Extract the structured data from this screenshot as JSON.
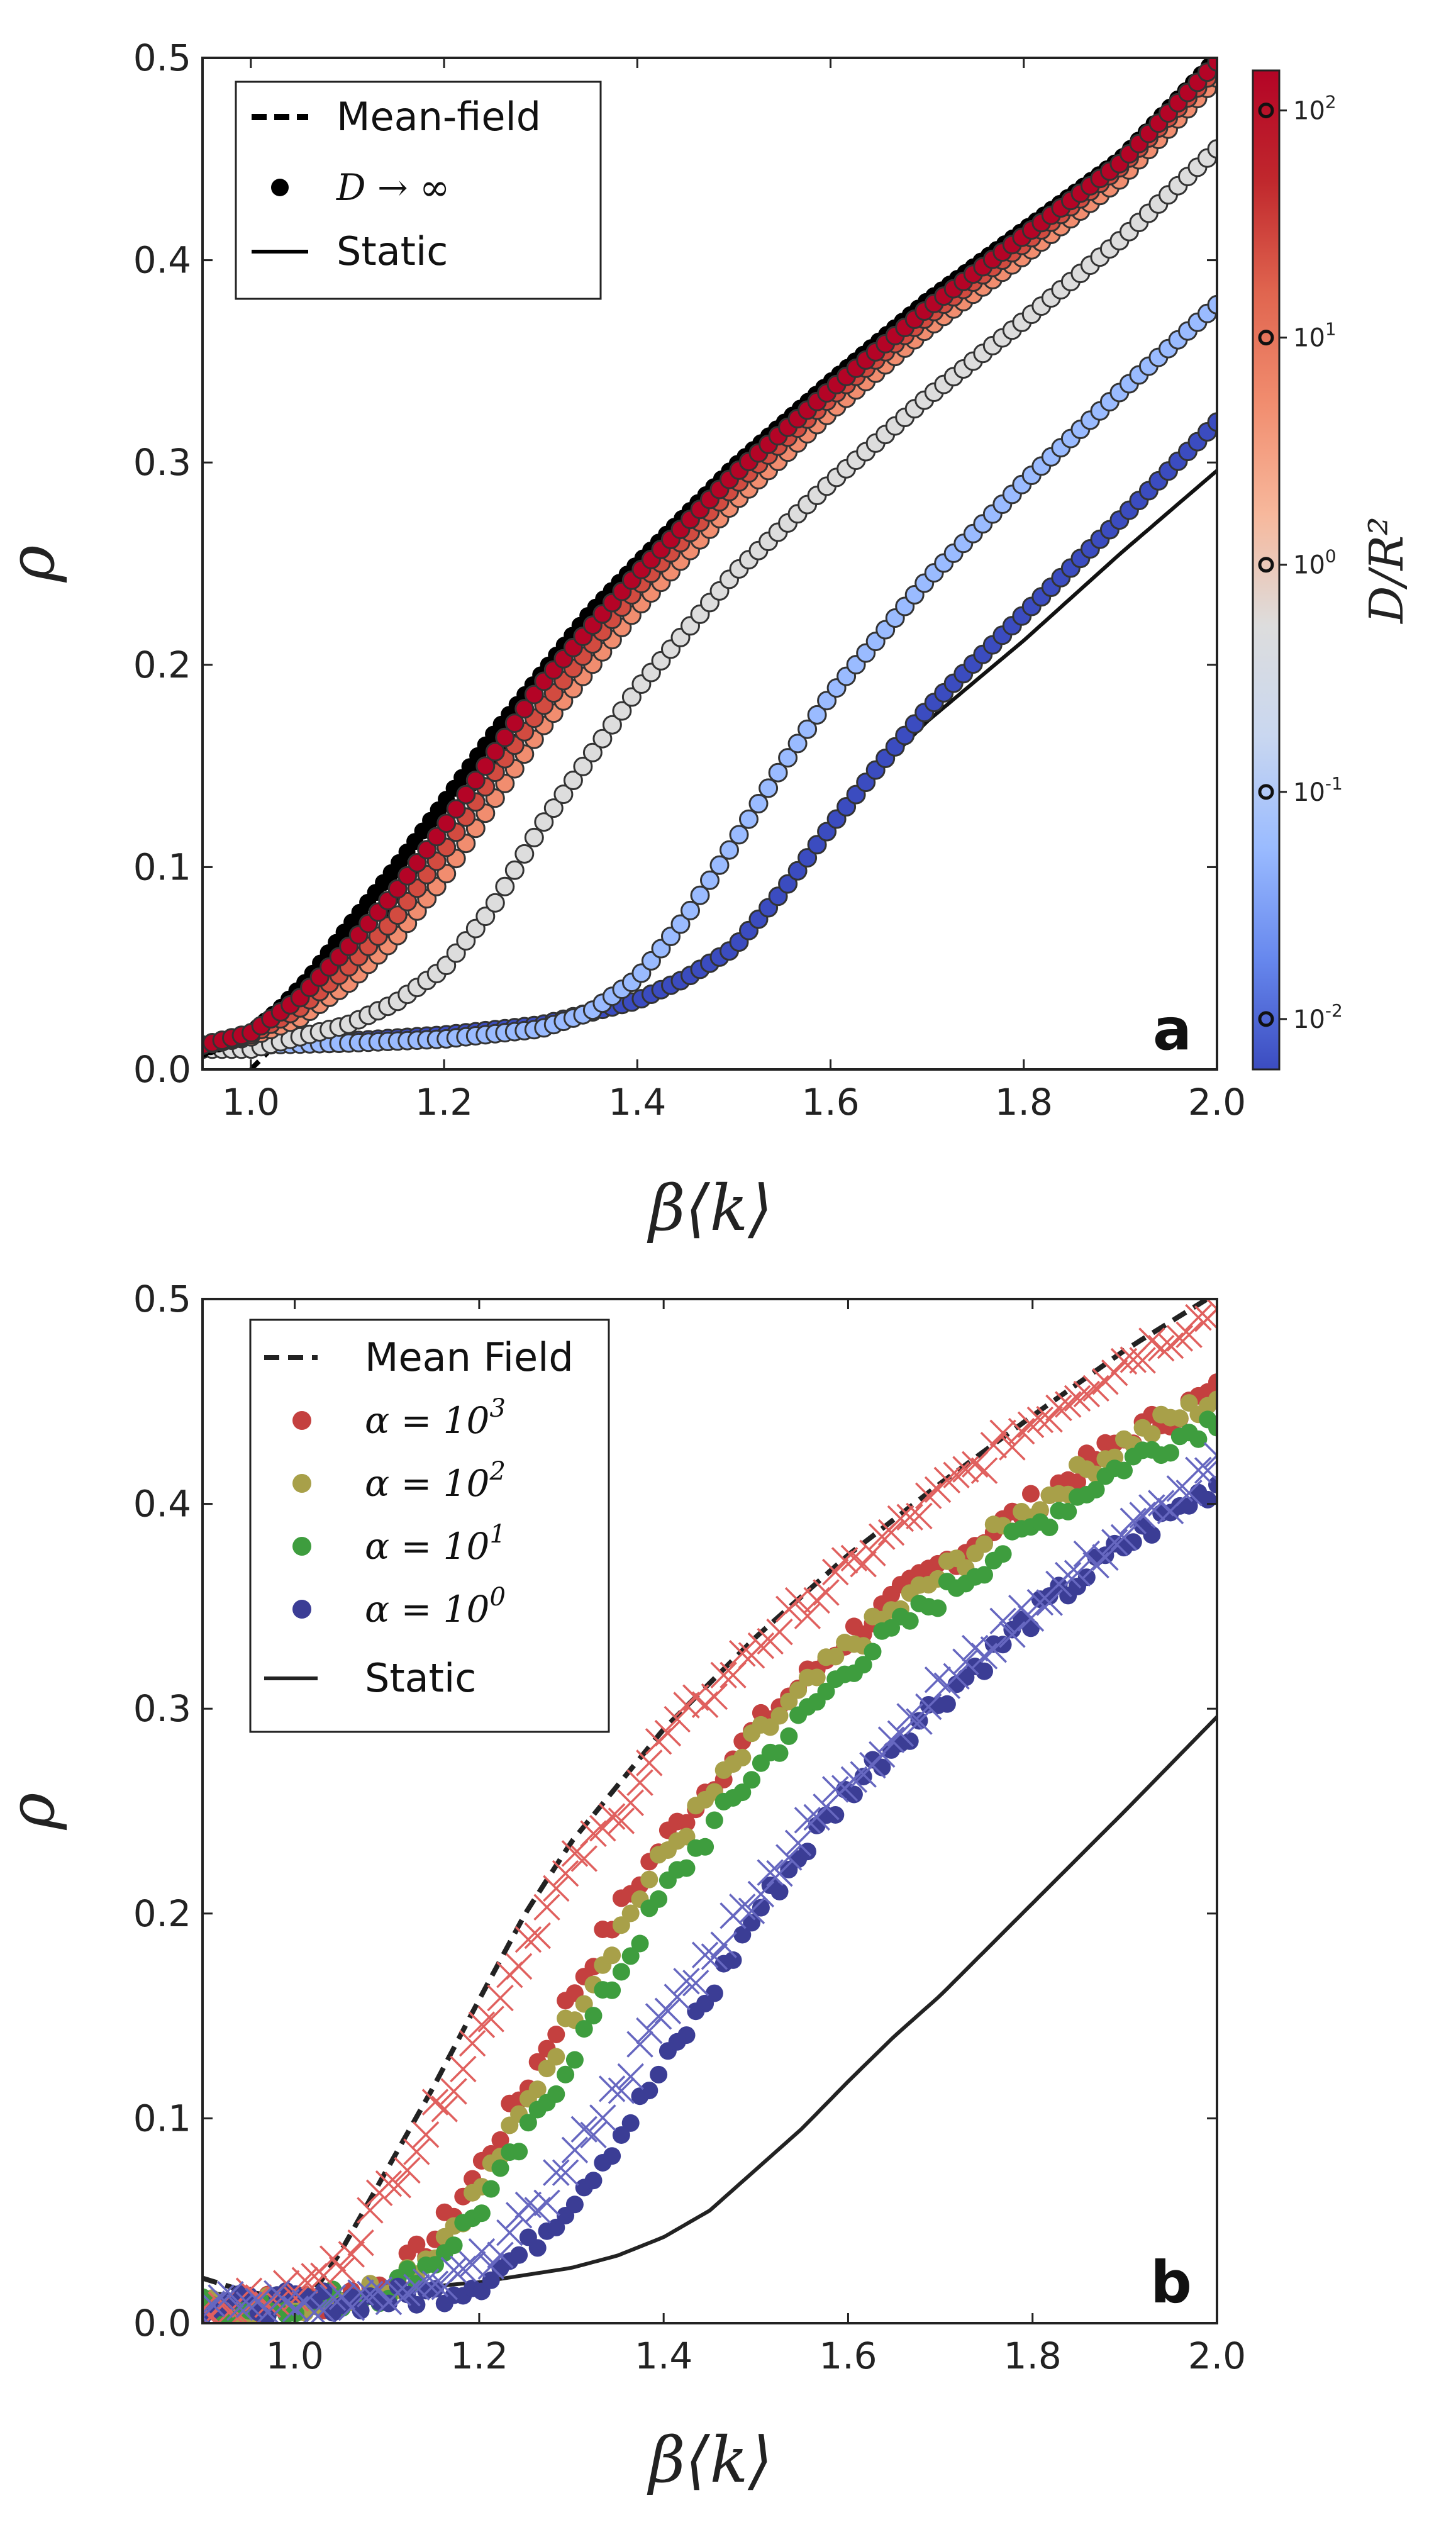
{
  "chart_data": [
    {
      "panel": "a",
      "type": "scatter",
      "xlabel": "β⟨k⟩",
      "ylabel": "ρ",
      "xlim": [
        0.95,
        2.0
      ],
      "ylim": [
        0.0,
        0.5
      ],
      "xticks": [
        "1.0",
        "1.2",
        "1.4",
        "1.6",
        "1.8",
        "2.0"
      ],
      "yticks": [
        "0.0",
        "0.1",
        "0.2",
        "0.3",
        "0.4",
        "0.5"
      ],
      "panel_label": "a",
      "legend": {
        "position": "top-left",
        "entries": [
          {
            "label": "Mean-field",
            "style": "dashed-line"
          },
          {
            "label": "D → ∞",
            "style": "marker"
          },
          {
            "label": "Static",
            "style": "solid-line"
          }
        ]
      },
      "colorbar": {
        "label": "D/R²",
        "scale": "log",
        "range": [
          0.006,
          150
        ],
        "ticks": [
          {
            "base": "10",
            "exp": "2",
            "value": 100
          },
          {
            "base": "10",
            "exp": "1",
            "value": 10
          },
          {
            "base": "10",
            "exp": "0",
            "value": 1
          },
          {
            "base": "10",
            "exp": "-1",
            "value": 0.1
          },
          {
            "base": "10",
            "exp": "-2",
            "value": 0.01
          }
        ],
        "colormap": [
          "#3b4cc0",
          "#6788ee",
          "#9abbff",
          "#c9d7f0",
          "#dddddd",
          "#f7b89c",
          "#f18d6f",
          "#e0654f",
          "#c0282d",
          "#b40426"
        ]
      },
      "series": [
        {
          "kind": "mean-field",
          "style": "dashed",
          "color": "#000000",
          "x": [
            0.95,
            1.0,
            1.05,
            1.1,
            1.2,
            1.3,
            1.4,
            1.5,
            1.6,
            1.7,
            1.8,
            1.9,
            2.0
          ],
          "y": [
            -0.04,
            0.0,
            0.024,
            0.045,
            0.12,
            0.18,
            0.236,
            0.29,
            0.333,
            0.375,
            0.41,
            0.445,
            0.5
          ]
        },
        {
          "kind": "D→∞",
          "style": "markers",
          "color": "#000000",
          "x": [
            0.95,
            1.0,
            1.03,
            1.06,
            1.1,
            1.15,
            1.2,
            1.25,
            1.3,
            1.35,
            1.4,
            1.5,
            1.6,
            1.7,
            1.8,
            1.9,
            2.0
          ],
          "y": [
            0.01,
            0.018,
            0.03,
            0.045,
            0.07,
            0.1,
            0.132,
            0.165,
            0.195,
            0.225,
            0.25,
            0.298,
            0.34,
            0.38,
            0.415,
            0.45,
            0.5
          ]
        },
        {
          "kind": "static",
          "style": "solid",
          "color": "#111111",
          "x": [
            0.95,
            1.0,
            1.1,
            1.2,
            1.3,
            1.35,
            1.4,
            1.45,
            1.5,
            1.55,
            1.6,
            1.65,
            1.7,
            1.8,
            1.9,
            2.0
          ],
          "y": [
            0.01,
            0.014,
            0.016,
            0.018,
            0.024,
            0.028,
            0.036,
            0.046,
            0.062,
            0.088,
            0.12,
            0.148,
            0.172,
            0.212,
            0.255,
            0.296
          ]
        },
        {
          "kind": "dynamic",
          "D_over_R2": 100,
          "color": "#b40426",
          "x": [
            0.95,
            1.0,
            1.05,
            1.1,
            1.15,
            1.2,
            1.25,
            1.3,
            1.4,
            1.5,
            1.6,
            1.7,
            1.8,
            1.9,
            2.0
          ],
          "y": [
            0.012,
            0.018,
            0.035,
            0.06,
            0.088,
            0.12,
            0.155,
            0.19,
            0.245,
            0.294,
            0.336,
            0.376,
            0.412,
            0.448,
            0.498
          ]
        },
        {
          "kind": "dynamic",
          "D_over_R2": 30,
          "color": "#d24b40",
          "x": [
            0.95,
            1.0,
            1.05,
            1.1,
            1.15,
            1.2,
            1.25,
            1.3,
            1.4,
            1.5,
            1.6,
            1.7,
            1.8,
            1.9,
            2.0
          ],
          "y": [
            0.012,
            0.017,
            0.03,
            0.05,
            0.075,
            0.108,
            0.145,
            0.178,
            0.238,
            0.288,
            0.332,
            0.372,
            0.408,
            0.446,
            0.495
          ]
        },
        {
          "kind": "dynamic",
          "D_over_R2": 10,
          "color": "#f18d6f",
          "x": [
            0.95,
            1.0,
            1.05,
            1.1,
            1.15,
            1.2,
            1.25,
            1.3,
            1.4,
            1.5,
            1.6,
            1.7,
            1.8,
            1.9,
            2.0
          ],
          "y": [
            0.012,
            0.016,
            0.025,
            0.042,
            0.065,
            0.095,
            0.132,
            0.168,
            0.228,
            0.28,
            0.325,
            0.366,
            0.402,
            0.44,
            0.49
          ]
        },
        {
          "kind": "dynamic",
          "D_over_R2": 1,
          "color": "#dddddd",
          "x": [
            0.95,
            1.0,
            1.05,
            1.1,
            1.15,
            1.2,
            1.25,
            1.3,
            1.4,
            1.5,
            1.6,
            1.7,
            1.8,
            1.9,
            2.0
          ],
          "y": [
            0.01,
            0.01,
            0.016,
            0.022,
            0.033,
            0.05,
            0.08,
            0.12,
            0.188,
            0.245,
            0.29,
            0.332,
            0.37,
            0.41,
            0.455
          ]
        },
        {
          "kind": "dynamic",
          "D_over_R2": 0.1,
          "color": "#9abbff",
          "x": [
            0.95,
            1.0,
            1.1,
            1.2,
            1.3,
            1.35,
            1.4,
            1.45,
            1.5,
            1.55,
            1.6,
            1.7,
            1.8,
            1.9,
            2.0
          ],
          "y": [
            0.012,
            0.012,
            0.013,
            0.015,
            0.02,
            0.028,
            0.045,
            0.075,
            0.112,
            0.15,
            0.185,
            0.242,
            0.29,
            0.335,
            0.378
          ]
        },
        {
          "kind": "dynamic",
          "D_over_R2": 0.01,
          "color": "#3b4cc0",
          "x": [
            0.95,
            1.0,
            1.1,
            1.2,
            1.3,
            1.4,
            1.45,
            1.5,
            1.55,
            1.6,
            1.65,
            1.7,
            1.8,
            1.9,
            2.0
          ],
          "y": [
            0.01,
            0.012,
            0.014,
            0.017,
            0.022,
            0.034,
            0.045,
            0.06,
            0.088,
            0.12,
            0.15,
            0.178,
            0.225,
            0.272,
            0.32
          ]
        }
      ]
    },
    {
      "panel": "b",
      "type": "scatter",
      "xlabel": "β⟨k⟩",
      "ylabel": "ρ",
      "xlim": [
        0.9,
        2.0
      ],
      "ylim": [
        0.0,
        0.5
      ],
      "xticks": [
        "1.0",
        "1.2",
        "1.4",
        "1.6",
        "1.8",
        "2.0"
      ],
      "yticks": [
        "0.0",
        "0.1",
        "0.2",
        "0.3",
        "0.4",
        "0.5"
      ],
      "panel_label": "b",
      "legend": {
        "position": "top-left",
        "entries": [
          {
            "label": "Mean Field",
            "style": "dashed-line",
            "color": "#222222"
          },
          {
            "label": "α = 10",
            "exp": "3",
            "style": "marker",
            "color": "#c4403f"
          },
          {
            "label": "α = 10",
            "exp": "2",
            "style": "marker",
            "color": "#a8a049"
          },
          {
            "label": "α = 10",
            "exp": "1",
            "style": "marker",
            "color": "#3e9d3e"
          },
          {
            "label": "α = 10",
            "exp": "0",
            "style": "marker",
            "color": "#3b3d95"
          },
          {
            "label": "Static",
            "style": "solid-line",
            "color": "#222222"
          }
        ]
      },
      "series": [
        {
          "kind": "mean-field",
          "style": "dashed",
          "color": "#222222",
          "x": [
            0.9,
            0.95,
            1.0,
            1.02,
            1.05,
            1.1,
            1.15,
            1.2,
            1.25,
            1.3,
            1.4,
            1.5,
            1.6,
            1.7,
            1.8,
            1.9,
            2.0
          ],
          "y": [
            0.022,
            0.015,
            0.012,
            0.015,
            0.035,
            0.075,
            0.115,
            0.158,
            0.2,
            0.235,
            0.29,
            0.335,
            0.375,
            0.41,
            0.443,
            0.475,
            0.503
          ]
        },
        {
          "kind": "static",
          "style": "solid",
          "color": "#222222",
          "x": [
            0.9,
            0.95,
            1.0,
            1.1,
            1.2,
            1.3,
            1.35,
            1.4,
            1.45,
            1.5,
            1.55,
            1.6,
            1.65,
            1.7,
            1.8,
            1.9,
            2.0
          ],
          "y": [
            0.015,
            0.013,
            0.012,
            0.016,
            0.02,
            0.027,
            0.033,
            0.042,
            0.055,
            0.075,
            0.095,
            0.118,
            0.14,
            0.16,
            0.205,
            0.25,
            0.296
          ]
        },
        {
          "kind": "dots",
          "alpha_exp": 3,
          "color": "#c4403f",
          "x": [
            0.9,
            1.0,
            1.05,
            1.1,
            1.15,
            1.2,
            1.25,
            1.3,
            1.35,
            1.4,
            1.5,
            1.6,
            1.7,
            1.8,
            1.9,
            2.0
          ],
          "y": [
            0.008,
            0.01,
            0.012,
            0.02,
            0.04,
            0.075,
            0.115,
            0.16,
            0.2,
            0.235,
            0.29,
            0.335,
            0.37,
            0.4,
            0.432,
            0.455
          ]
        },
        {
          "kind": "dots",
          "alpha_exp": 2,
          "color": "#a8a049",
          "x": [
            0.9,
            1.0,
            1.05,
            1.1,
            1.15,
            1.2,
            1.25,
            1.3,
            1.35,
            1.4,
            1.5,
            1.6,
            1.7,
            1.8,
            1.9,
            2.0
          ],
          "y": [
            0.008,
            0.01,
            0.012,
            0.018,
            0.035,
            0.065,
            0.105,
            0.15,
            0.19,
            0.228,
            0.285,
            0.33,
            0.365,
            0.398,
            0.43,
            0.452
          ]
        },
        {
          "kind": "dots",
          "alpha_exp": 1,
          "color": "#3e9d3e",
          "x": [
            0.9,
            1.0,
            1.05,
            1.1,
            1.15,
            1.2,
            1.25,
            1.3,
            1.35,
            1.4,
            1.5,
            1.6,
            1.7,
            1.8,
            1.9,
            2.0
          ],
          "y": [
            0.008,
            0.01,
            0.012,
            0.016,
            0.03,
            0.055,
            0.09,
            0.13,
            0.17,
            0.21,
            0.27,
            0.32,
            0.355,
            0.388,
            0.42,
            0.442
          ]
        },
        {
          "kind": "dots",
          "alpha_exp": 0,
          "color": "#3b3d95",
          "x": [
            0.9,
            1.0,
            1.1,
            1.15,
            1.2,
            1.25,
            1.3,
            1.35,
            1.4,
            1.45,
            1.5,
            1.6,
            1.7,
            1.8,
            1.9,
            2.0
          ],
          "y": [
            0.008,
            0.01,
            0.012,
            0.014,
            0.02,
            0.035,
            0.06,
            0.09,
            0.125,
            0.16,
            0.2,
            0.26,
            0.305,
            0.345,
            0.38,
            0.41
          ]
        },
        {
          "kind": "crosses",
          "alpha_exp": 3,
          "color": "#e0605e",
          "x": [
            0.9,
            0.95,
            1.0,
            1.05,
            1.1,
            1.15,
            1.2,
            1.25,
            1.3,
            1.35,
            1.4,
            1.5,
            1.6,
            1.7,
            1.8,
            1.9,
            2.0
          ],
          "y": [
            0.008,
            0.01,
            0.015,
            0.03,
            0.065,
            0.1,
            0.142,
            0.185,
            0.222,
            0.248,
            0.285,
            0.33,
            0.368,
            0.405,
            0.44,
            0.47,
            0.495
          ]
        },
        {
          "kind": "crosses",
          "alpha_exp": 0,
          "color": "#6667c0",
          "x": [
            0.9,
            1.0,
            1.1,
            1.15,
            1.2,
            1.25,
            1.3,
            1.35,
            1.4,
            1.45,
            1.5,
            1.6,
            1.7,
            1.8,
            1.9,
            2.0
          ],
          "y": [
            0.008,
            0.01,
            0.012,
            0.016,
            0.028,
            0.05,
            0.08,
            0.115,
            0.15,
            0.18,
            0.21,
            0.265,
            0.31,
            0.35,
            0.385,
            0.418
          ]
        }
      ]
    }
  ]
}
